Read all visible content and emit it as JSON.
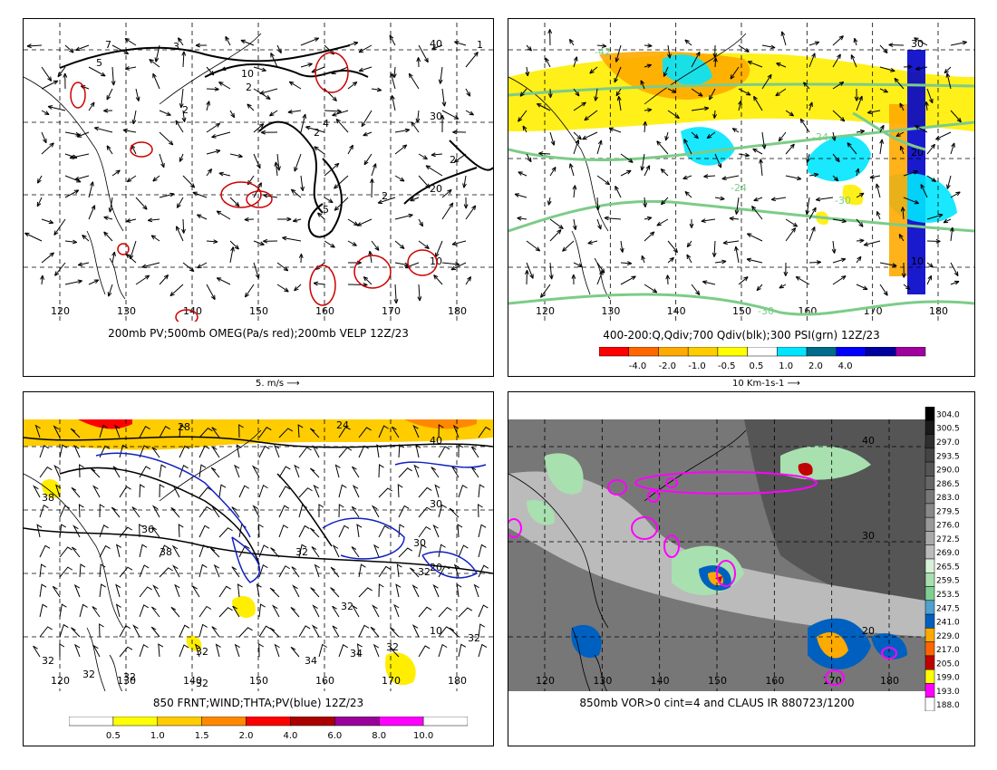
{
  "panels": {
    "p1": {
      "caption": "200mb PV;500mb OMEG(Pa/s red);200mb VELP 12Z/23",
      "scale_note": "5. m/s",
      "lon_labels": [
        "120",
        "130",
        "140",
        "150",
        "160",
        "170",
        "180"
      ],
      "lat_labels": [
        "10",
        "20",
        "30",
        "40"
      ],
      "contour_labels": [
        "7",
        "3",
        "1",
        "5",
        "10",
        "2",
        "4",
        "2",
        "2",
        "5",
        "2",
        "2"
      ]
    },
    "p2": {
      "caption": "400-200:Q,Qdiv;700 Qdiv(blk);300 PSI(grn) 12Z/23",
      "scale_note": "10 Km-1s-1",
      "lon_labels": [
        "120",
        "130",
        "140",
        "150",
        "160",
        "170",
        "180"
      ],
      "lat_labels": [
        "10",
        "20",
        "30"
      ],
      "contour_labels": [
        "-42",
        "-24",
        "-30",
        "-30",
        "-24"
      ],
      "colorbar": {
        "labels": [
          "-4.0",
          "-2.0",
          "-1.0",
          "-0.5",
          "0.5",
          "1.0",
          "2.0",
          "4.0"
        ],
        "colors": [
          "#ff0000",
          "#ff6600",
          "#ffaa00",
          "#ffcc00",
          "#ffff00",
          "#ffffff",
          "#00e5ff",
          "#006b8a",
          "#0000ff",
          "#0000a0",
          "#a000a0"
        ]
      }
    },
    "p3": {
      "caption": "850 FRNT;WIND;THTA;PV(blue) 12Z/23",
      "lon_labels": [
        "120",
        "130",
        "140",
        "150",
        "160",
        "170",
        "180"
      ],
      "lat_labels": [
        "10",
        "20",
        "30",
        "40"
      ],
      "contour_labels": [
        "24",
        "28",
        "38",
        "36",
        "38",
        "32",
        "32",
        "30",
        "32",
        "32",
        "32",
        "34",
        "34",
        "32",
        "32",
        "32",
        "32",
        "32"
      ],
      "colorbar": {
        "labels": [
          "0.5",
          "1.0",
          "1.5",
          "2.0",
          "4.0",
          "6.0",
          "8.0",
          "10.0"
        ],
        "colors": [
          "#ffffff",
          "#ffff00",
          "#ffcc00",
          "#ff8800",
          "#ff0000",
          "#aa0000",
          "#990099",
          "#ff00ff",
          "#ffffff"
        ]
      }
    },
    "p4": {
      "caption": "850mb VOR>0 cint=4 and CLAUS IR 880723/1200",
      "lon_labels": [
        "120",
        "130",
        "140",
        "150",
        "160",
        "170",
        "180"
      ],
      "lat_labels": [
        "20",
        "30",
        "40"
      ],
      "colorbar": {
        "labels": [
          "304.0",
          "300.5",
          "297.0",
          "293.5",
          "290.0",
          "286.5",
          "283.0",
          "279.5",
          "276.0",
          "272.5",
          "269.0",
          "265.5",
          "259.5",
          "253.5",
          "247.5",
          "241.0",
          "229.0",
          "217.0",
          "205.0",
          "199.0",
          "193.0",
          "188.0"
        ],
        "colors": [
          "#000000",
          "#1a1a1a",
          "#2f2f2f",
          "#444444",
          "#555555",
          "#666666",
          "#777777",
          "#888888",
          "#999999",
          "#aaaaaa",
          "#bbbbbb",
          "#d8f0d8",
          "#a8e0b0",
          "#7fd090",
          "#50a0d0",
          "#0060c0",
          "#ffaa00",
          "#ff6600",
          "#c00000",
          "#ffff00",
          "#ff00ff",
          "#ffffff"
        ]
      }
    }
  }
}
